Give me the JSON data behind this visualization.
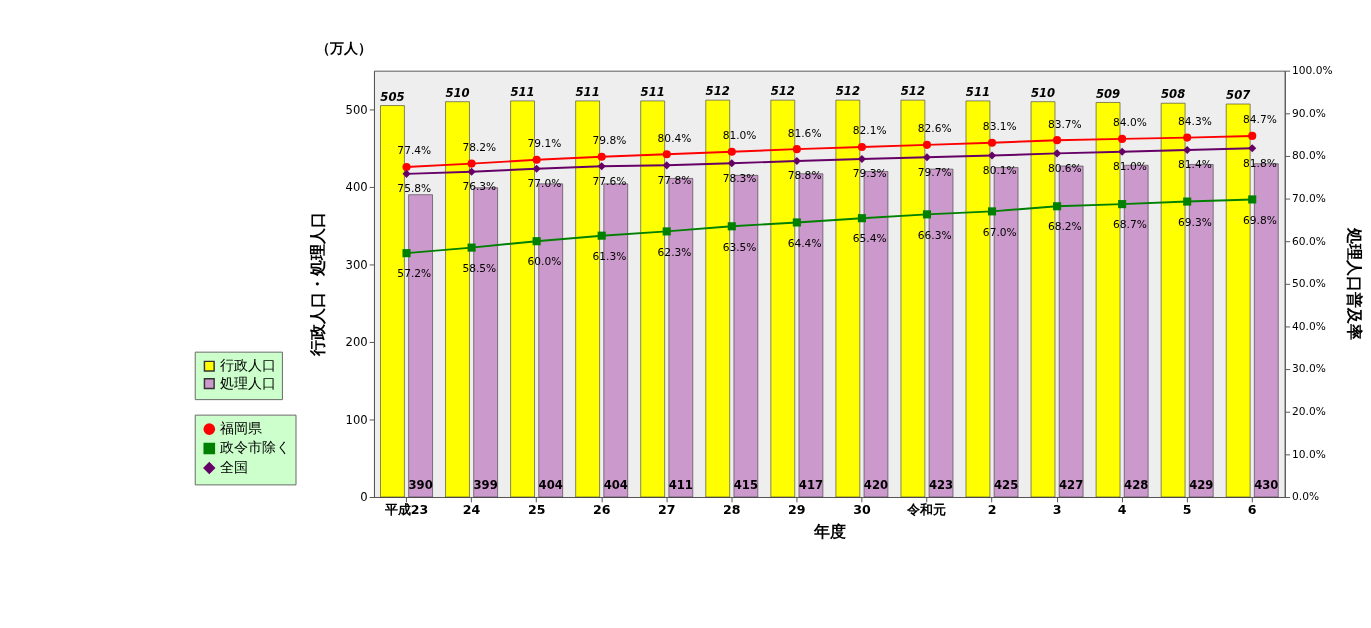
{
  "chart_data": {
    "type": "bar",
    "categories": [
      "平成23",
      "24",
      "25",
      "26",
      "27",
      "28",
      "29",
      "30",
      "令和元",
      "2",
      "3",
      "4",
      "5",
      "6"
    ],
    "xlabel": "年度",
    "ylabel": "行政人口・処理人口",
    "y2label": "処理人口普及率",
    "annotations": [
      "（万人）"
    ],
    "ylim": [
      0,
      550
    ],
    "yticks": [
      0,
      100,
      200,
      300,
      400,
      500
    ],
    "y2lim": [
      0,
      100
    ],
    "y2ticks": [
      {
        "value": 0,
        "label": "0.0%"
      },
      {
        "value": 10,
        "label": "10.0%"
      },
      {
        "value": 20,
        "label": "20.0%"
      },
      {
        "value": 30,
        "label": "30.0%"
      },
      {
        "value": 40,
        "label": "40.0%"
      },
      {
        "value": 50,
        "label": "50.0%"
      },
      {
        "value": 60,
        "label": "60.0%"
      },
      {
        "value": 70,
        "label": "70.0%"
      },
      {
        "value": 80,
        "label": "80.0%"
      },
      {
        "value": 90,
        "label": "90.0%"
      },
      {
        "value": 100,
        "label": "100.0%"
      }
    ],
    "grid": false,
    "legend": "bottom left",
    "series": [
      {
        "name": "行政人口",
        "color": "#ffff00",
        "values": [
          505,
          510,
          511,
          511,
          511,
          512,
          512,
          512,
          512,
          511,
          510,
          509,
          508,
          507
        ],
        "value_labels": [
          "505",
          "510",
          "511",
          "511",
          "511",
          "512",
          "512",
          "512",
          "512",
          "511",
          "510",
          "509",
          "508",
          "507"
        ]
      },
      {
        "name": "処理人口",
        "color": "#cc99cc",
        "values": [
          390,
          399,
          404,
          404,
          411,
          415,
          417,
          420,
          423,
          425,
          427,
          428,
          429,
          430
        ],
        "value_labels": [
          "390",
          "399",
          "404",
          "404",
          "411",
          "415",
          "417",
          "420",
          "423",
          "425",
          "427",
          "428",
          "429",
          "430"
        ]
      },
      {
        "name": "福岡県",
        "type": "line",
        "axis": "y2",
        "marker": "circle",
        "color": "#ff0000",
        "values": [
          77.4,
          78.2,
          79.1,
          79.8,
          80.4,
          81.0,
          81.6,
          82.1,
          82.6,
          83.1,
          83.7,
          84.0,
          84.3,
          84.7
        ],
        "value_labels": [
          "77.4%",
          "78.2%",
          "79.1%",
          "79.8%",
          "80.4%",
          "81.0%",
          "81.6%",
          "82.1%",
          "82.6%",
          "83.1%",
          "83.7%",
          "84.0%",
          "84.3%",
          "84.7%"
        ]
      },
      {
        "name": "政令市除く",
        "type": "line",
        "axis": "y2",
        "marker": "square",
        "color": "#008000",
        "values": [
          57.2,
          58.5,
          60.0,
          61.3,
          62.3,
          63.5,
          64.4,
          65.4,
          66.3,
          67.0,
          68.2,
          68.7,
          69.3,
          69.8
        ],
        "value_labels": [
          "57.2%",
          "58.5%",
          "60.0%",
          "61.3%",
          "62.3%",
          "63.5%",
          "64.4%",
          "65.4%",
          "66.3%",
          "67.0%",
          "68.2%",
          "68.7%",
          "69.3%",
          "69.8%"
        ]
      },
      {
        "name": "全国",
        "type": "line",
        "axis": "y2",
        "marker": "diamond",
        "color": "#660066",
        "values": [
          75.8,
          76.3,
          77.0,
          77.6,
          77.8,
          78.3,
          78.8,
          79.3,
          79.7,
          80.1,
          80.6,
          81.0,
          81.4,
          81.8
        ],
        "value_labels": [
          "75.8%",
          "76.3%",
          "77.0%",
          "77.6%",
          "77.8%",
          "78.3%",
          "78.8%",
          "79.3%",
          "79.7%",
          "80.1%",
          "80.6%",
          "81.0%",
          "81.4%",
          "81.8%"
        ]
      }
    ]
  }
}
